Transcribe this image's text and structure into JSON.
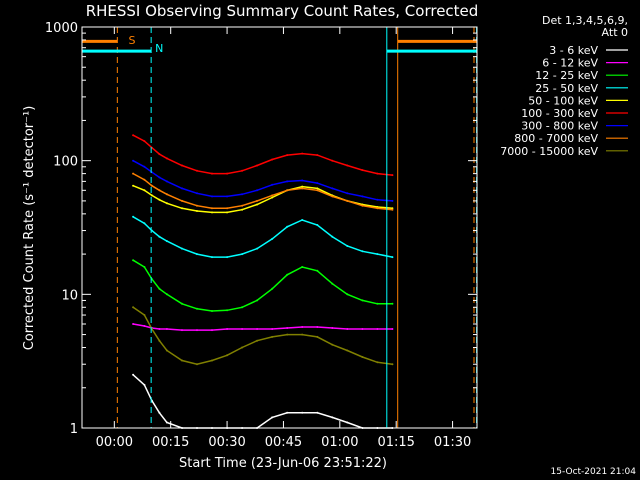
{
  "header": {
    "title": "RHESSI Observing Summary Count Rates, Corrected",
    "detectors_line1": "Det 1,3,4,5,6,9,",
    "detectors_line2": "Att 0"
  },
  "footer": {
    "timestamp": "15-Oct-2021 21:04"
  },
  "chart_data": {
    "type": "line",
    "title": "RHESSI Observing Summary Count Rates, Corrected",
    "xlabel": "Start Time (23-Jun-06 23:51:22)",
    "ylabel": "Corrected Count Rate (s⁻¹ detector⁻¹)",
    "yscale": "log",
    "ylim": [
      1,
      1000
    ],
    "xlim_minutes": [
      -8.6,
      96.5
    ],
    "x_unit": "minutes after 00:00",
    "x_ticks": [
      {
        "value": 0,
        "label": "00:00"
      },
      {
        "value": 15,
        "label": "00:15"
      },
      {
        "value": 30,
        "label": "00:30"
      },
      {
        "value": 45,
        "label": "00:45"
      },
      {
        "value": 60,
        "label": "01:00"
      },
      {
        "value": 75,
        "label": "01:15"
      },
      {
        "value": 90,
        "label": "01:30"
      }
    ],
    "y_ticks": [
      {
        "value": 1,
        "label": "1"
      },
      {
        "value": 10,
        "label": "10"
      },
      {
        "value": 100,
        "label": "100"
      },
      {
        "value": 1000,
        "label": "1000"
      }
    ],
    "grid": false,
    "legend_position": "right",
    "series": [
      {
        "name": "3 - 6 keV",
        "color": "#ffffff",
        "x": [
          5,
          8,
          10,
          12,
          14,
          18,
          22,
          26,
          30,
          34,
          38,
          42,
          46,
          50,
          54,
          58,
          62,
          66,
          70,
          74
        ],
        "y": [
          2.5,
          2.1,
          1.6,
          1.3,
          1.1,
          1,
          1,
          1,
          1,
          1,
          1,
          1.2,
          1.3,
          1.3,
          1.3,
          1.2,
          1.1,
          1,
          1,
          1
        ]
      },
      {
        "name": "6 - 12 keV",
        "color": "#ff00ff",
        "x": [
          5,
          8,
          10,
          12,
          14,
          18,
          22,
          26,
          30,
          34,
          38,
          42,
          46,
          50,
          54,
          58,
          62,
          66,
          70,
          74
        ],
        "y": [
          6,
          5.8,
          5.6,
          5.5,
          5.5,
          5.4,
          5.4,
          5.4,
          5.5,
          5.5,
          5.5,
          5.5,
          5.6,
          5.7,
          5.7,
          5.6,
          5.5,
          5.5,
          5.5,
          5.5
        ]
      },
      {
        "name": "12 - 25 keV",
        "color": "#00ff00",
        "x": [
          5,
          8,
          10,
          12,
          14,
          18,
          22,
          26,
          30,
          34,
          38,
          42,
          46,
          50,
          54,
          58,
          62,
          66,
          70,
          74
        ],
        "y": [
          18,
          16,
          13,
          11,
          10,
          8.5,
          7.8,
          7.5,
          7.6,
          8,
          9,
          11,
          14,
          16,
          15,
          12,
          10,
          9,
          8.5,
          8.5
        ]
      },
      {
        "name": "25 - 50 keV",
        "color": "#00ffff",
        "x": [
          5,
          8,
          10,
          12,
          14,
          18,
          22,
          26,
          30,
          34,
          38,
          42,
          46,
          50,
          54,
          58,
          62,
          66,
          70,
          74
        ],
        "y": [
          38,
          34,
          30,
          27,
          25,
          22,
          20,
          19,
          19,
          20,
          22,
          26,
          32,
          36,
          33,
          27,
          23,
          21,
          20,
          19
        ]
      },
      {
        "name": "50 - 100 keV",
        "color": "#ffff00",
        "x": [
          5,
          8,
          10,
          12,
          14,
          18,
          22,
          26,
          30,
          34,
          38,
          42,
          46,
          50,
          54,
          58,
          62,
          66,
          70,
          74
        ],
        "y": [
          65,
          60,
          55,
          51,
          48,
          44,
          42,
          41,
          41,
          43,
          47,
          53,
          60,
          64,
          62,
          55,
          50,
          47,
          45,
          44
        ]
      },
      {
        "name": "100 - 300 keV",
        "color": "#ff0000",
        "x": [
          5,
          8,
          10,
          12,
          14,
          18,
          22,
          26,
          30,
          34,
          38,
          42,
          46,
          50,
          54,
          58,
          62,
          66,
          70,
          74
        ],
        "y": [
          155,
          140,
          125,
          112,
          104,
          92,
          84,
          80,
          80,
          84,
          92,
          102,
          110,
          113,
          110,
          100,
          92,
          85,
          80,
          78
        ]
      },
      {
        "name": "300 - 800 keV",
        "color": "#0000ff",
        "x": [
          5,
          8,
          10,
          12,
          14,
          18,
          22,
          26,
          30,
          34,
          38,
          42,
          46,
          50,
          54,
          58,
          62,
          66,
          70,
          74
        ],
        "y": [
          100,
          90,
          82,
          75,
          70,
          62,
          57,
          54,
          54,
          56,
          60,
          66,
          70,
          71,
          68,
          62,
          57,
          54,
          51,
          50
        ]
      },
      {
        "name": "800 - 7000 keV",
        "color": "#ff8000",
        "x": [
          5,
          8,
          10,
          12,
          14,
          18,
          22,
          26,
          30,
          34,
          38,
          42,
          46,
          50,
          54,
          58,
          62,
          66,
          70,
          74
        ],
        "y": [
          80,
          72,
          65,
          60,
          56,
          50,
          46,
          44,
          44,
          46,
          50,
          55,
          60,
          62,
          60,
          54,
          50,
          46,
          44,
          43
        ]
      },
      {
        "name": "7000 - 15000 keV",
        "color": "#808000",
        "x": [
          5,
          8,
          10,
          12,
          14,
          18,
          22,
          26,
          30,
          34,
          38,
          42,
          46,
          50,
          54,
          58,
          62,
          66,
          70,
          74
        ],
        "y": [
          8,
          7,
          5.5,
          4.5,
          3.8,
          3.2,
          3,
          3.2,
          3.5,
          4,
          4.5,
          4.8,
          5,
          5,
          4.8,
          4.2,
          3.8,
          3.4,
          3.1,
          3
        ]
      }
    ],
    "annotations": [
      {
        "label": "S",
        "x_minutes": 2.7,
        "color": "#ff8000"
      },
      {
        "label": "N",
        "x_minutes": 9.8,
        "color": "#00ffff"
      }
    ],
    "boundary_lines": [
      {
        "x_minutes": -8.6,
        "color": "#00ffff",
        "style": "solid"
      },
      {
        "x_minutes": 0.8,
        "color": "#ff8000",
        "style": "dashed"
      },
      {
        "x_minutes": 9.8,
        "color": "#00ffff",
        "style": "dashed"
      },
      {
        "x_minutes": 72.5,
        "color": "#00ffff",
        "style": "solid"
      },
      {
        "x_minutes": 75.4,
        "color": "#ff8000",
        "style": "solid"
      },
      {
        "x_minutes": 95.7,
        "color": "#ff8000",
        "style": "dashed"
      },
      {
        "x_minutes": 96.4,
        "color": "#00ffff",
        "style": "dashed"
      }
    ],
    "bar_segments": [
      {
        "x1": -8.6,
        "x2": 0.8,
        "level": 780,
        "color": "#ff8000"
      },
      {
        "x1": 75.4,
        "x2": 96.5,
        "level": 780,
        "color": "#ff8000"
      },
      {
        "x1": -8.6,
        "x2": 9.8,
        "level": 660,
        "color": "#00ffff"
      },
      {
        "x1": 72.5,
        "x2": 96.5,
        "level": 660,
        "color": "#00ffff"
      }
    ]
  }
}
